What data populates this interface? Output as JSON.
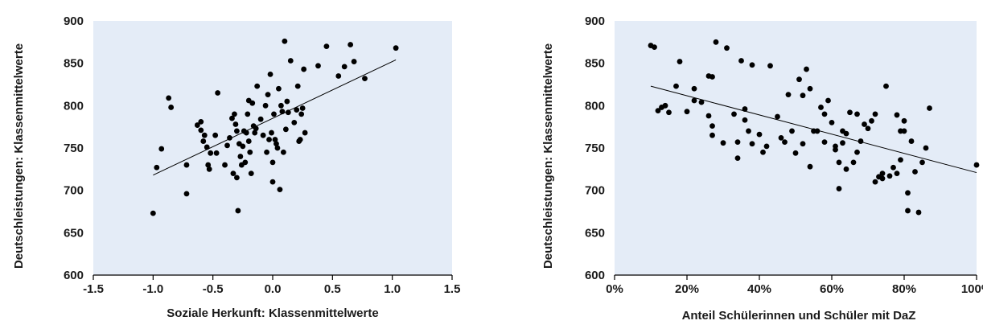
{
  "colors": {
    "plot_background": "#e4ecf7",
    "point": "#000000",
    "trend_line": "#000000",
    "text": "#1a1a1a"
  },
  "chart_data": [
    {
      "type": "scatter",
      "xlabel": "Soziale Herkunft: Klassenmittelwerte",
      "ylabel": "Deutschleistungen: Klassenmittelwerte",
      "xlim": [
        -1.5,
        1.5
      ],
      "ylim": [
        600,
        900
      ],
      "xticks": [
        -1.5,
        -1.0,
        -0.5,
        0.0,
        0.5,
        1.0,
        1.5
      ],
      "xtick_labels": [
        "-1.5",
        "-1.0",
        "-0.5",
        "0.0",
        "0.5",
        "1.0",
        "1.5"
      ],
      "yticks": [
        600,
        650,
        700,
        750,
        800,
        850,
        900
      ],
      "ytick_labels": [
        "600",
        "650",
        "700",
        "750",
        "800",
        "850",
        "900"
      ],
      "grid": false,
      "trend_line": {
        "x": [
          -1.0,
          1.03
        ],
        "y": [
          718,
          854
        ]
      },
      "points": [
        [
          -1.0,
          673
        ],
        [
          -0.97,
          727
        ],
        [
          -0.93,
          749
        ],
        [
          -0.87,
          809
        ],
        [
          -0.85,
          798
        ],
        [
          -0.72,
          730
        ],
        [
          -0.72,
          696
        ],
        [
          -0.63,
          777
        ],
        [
          -0.6,
          781
        ],
        [
          -0.6,
          771
        ],
        [
          -0.58,
          758
        ],
        [
          -0.57,
          765
        ],
        [
          -0.55,
          751
        ],
        [
          -0.54,
          730
        ],
        [
          -0.53,
          725
        ],
        [
          -0.52,
          744
        ],
        [
          -0.48,
          765
        ],
        [
          -0.47,
          744
        ],
        [
          -0.46,
          815
        ],
        [
          -0.4,
          730
        ],
        [
          -0.38,
          753
        ],
        [
          -0.36,
          762
        ],
        [
          -0.34,
          785
        ],
        [
          -0.33,
          720
        ],
        [
          -0.32,
          790
        ],
        [
          -0.31,
          778
        ],
        [
          -0.3,
          770
        ],
        [
          -0.3,
          715
        ],
        [
          -0.29,
          676
        ],
        [
          -0.28,
          755
        ],
        [
          -0.27,
          740
        ],
        [
          -0.26,
          730
        ],
        [
          -0.25,
          752
        ],
        [
          -0.24,
          770
        ],
        [
          -0.23,
          733
        ],
        [
          -0.22,
          768
        ],
        [
          -0.21,
          790
        ],
        [
          -0.2,
          806
        ],
        [
          -0.2,
          758
        ],
        [
          -0.19,
          745
        ],
        [
          -0.18,
          720
        ],
        [
          -0.17,
          803
        ],
        [
          -0.16,
          776
        ],
        [
          -0.15,
          768
        ],
        [
          -0.14,
          773
        ],
        [
          -0.13,
          823
        ],
        [
          -0.1,
          784
        ],
        [
          -0.08,
          765
        ],
        [
          -0.06,
          800
        ],
        [
          -0.05,
          745
        ],
        [
          -0.04,
          813
        ],
        [
          -0.03,
          760
        ],
        [
          -0.02,
          837
        ],
        [
          -0.01,
          768
        ],
        [
          0.0,
          733
        ],
        [
          0.0,
          710
        ],
        [
          0.01,
          790
        ],
        [
          0.02,
          760
        ],
        [
          0.03,
          755
        ],
        [
          0.04,
          750
        ],
        [
          0.05,
          820
        ],
        [
          0.06,
          701
        ],
        [
          0.07,
          800
        ],
        [
          0.08,
          793
        ],
        [
          0.09,
          745
        ],
        [
          0.1,
          876
        ],
        [
          0.11,
          772
        ],
        [
          0.12,
          805
        ],
        [
          0.13,
          792
        ],
        [
          0.15,
          853
        ],
        [
          0.18,
          780
        ],
        [
          0.2,
          795
        ],
        [
          0.21,
          823
        ],
        [
          0.22,
          758
        ],
        [
          0.23,
          760
        ],
        [
          0.24,
          790
        ],
        [
          0.25,
          797
        ],
        [
          0.26,
          843
        ],
        [
          0.27,
          768
        ],
        [
          0.38,
          847
        ],
        [
          0.45,
          870
        ],
        [
          0.55,
          835
        ],
        [
          0.6,
          846
        ],
        [
          0.65,
          872
        ],
        [
          0.68,
          852
        ],
        [
          0.77,
          832
        ],
        [
          1.03,
          868
        ]
      ]
    },
    {
      "type": "scatter",
      "xlabel": "Anteil Schülerinnen und Schüler mit DaZ",
      "ylabel": "Deutschleistungen: Klassenmittelwerte",
      "xlim": [
        0,
        100
      ],
      "ylim": [
        600,
        900
      ],
      "xticks": [
        0,
        20,
        40,
        60,
        80,
        100
      ],
      "xtick_labels": [
        "0%",
        "20%",
        "40%",
        "60%",
        "80%",
        "100%"
      ],
      "yticks": [
        600,
        650,
        700,
        750,
        800,
        850,
        900
      ],
      "ytick_labels": [
        "600",
        "650",
        "700",
        "750",
        "800",
        "850",
        "900"
      ],
      "grid": false,
      "trend_line": {
        "x": [
          10,
          100
        ],
        "y": [
          823,
          721
        ]
      },
      "points": [
        [
          10,
          871
        ],
        [
          11,
          869
        ],
        [
          12,
          794
        ],
        [
          13,
          798
        ],
        [
          14,
          800
        ],
        [
          15,
          792
        ],
        [
          17,
          823
        ],
        [
          18,
          852
        ],
        [
          20,
          793
        ],
        [
          22,
          820
        ],
        [
          22,
          806
        ],
        [
          24,
          804
        ],
        [
          26,
          835
        ],
        [
          26,
          788
        ],
        [
          27,
          834
        ],
        [
          27,
          776
        ],
        [
          27,
          765
        ],
        [
          28,
          875
        ],
        [
          30,
          756
        ],
        [
          31,
          868
        ],
        [
          33,
          790
        ],
        [
          34,
          757
        ],
        [
          34,
          738
        ],
        [
          35,
          853
        ],
        [
          36,
          783
        ],
        [
          36,
          796
        ],
        [
          37,
          770
        ],
        [
          38,
          755
        ],
        [
          38,
          848
        ],
        [
          40,
          766
        ],
        [
          41,
          745
        ],
        [
          42,
          752
        ],
        [
          43,
          847
        ],
        [
          45,
          787
        ],
        [
          46,
          762
        ],
        [
          47,
          757
        ],
        [
          48,
          813
        ],
        [
          49,
          770
        ],
        [
          50,
          744
        ],
        [
          51,
          831
        ],
        [
          52,
          812
        ],
        [
          52,
          755
        ],
        [
          53,
          843
        ],
        [
          54,
          820
        ],
        [
          54,
          728
        ],
        [
          55,
          770
        ],
        [
          56,
          770
        ],
        [
          57,
          798
        ],
        [
          58,
          757
        ],
        [
          58,
          790
        ],
        [
          59,
          806
        ],
        [
          60,
          780
        ],
        [
          61,
          752
        ],
        [
          61,
          748
        ],
        [
          62,
          733
        ],
        [
          62,
          702
        ],
        [
          63,
          756
        ],
        [
          63,
          770
        ],
        [
          64,
          725
        ],
        [
          64,
          767
        ],
        [
          65,
          792
        ],
        [
          66,
          733
        ],
        [
          67,
          745
        ],
        [
          67,
          790
        ],
        [
          68,
          758
        ],
        [
          69,
          778
        ],
        [
          70,
          773
        ],
        [
          71,
          782
        ],
        [
          72,
          790
        ],
        [
          72,
          710
        ],
        [
          73,
          716
        ],
        [
          74,
          720
        ],
        [
          74,
          714
        ],
        [
          75,
          823
        ],
        [
          76,
          717
        ],
        [
          77,
          727
        ],
        [
          78,
          720
        ],
        [
          78,
          789
        ],
        [
          79,
          770
        ],
        [
          79,
          736
        ],
        [
          80,
          782
        ],
        [
          80,
          770
        ],
        [
          81,
          697
        ],
        [
          81,
          676
        ],
        [
          82,
          758
        ],
        [
          83,
          722
        ],
        [
          84,
          674
        ],
        [
          85,
          733
        ],
        [
          86,
          750
        ],
        [
          87,
          797
        ],
        [
          100,
          730
        ]
      ]
    }
  ]
}
